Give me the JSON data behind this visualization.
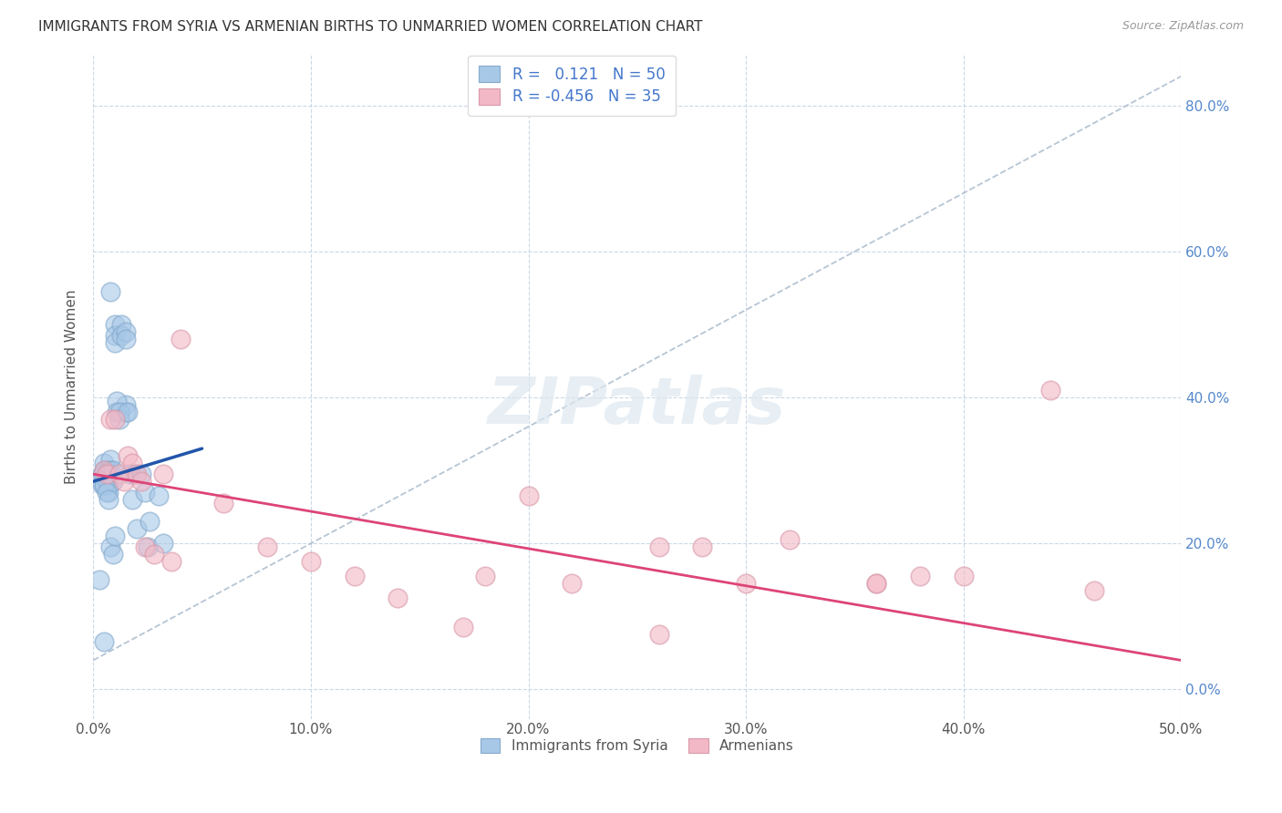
{
  "title": "IMMIGRANTS FROM SYRIA VS ARMENIAN BIRTHS TO UNMARRIED WOMEN CORRELATION CHART",
  "source": "Source: ZipAtlas.com",
  "ylabel": "Births to Unmarried Women",
  "legend_label1": "Immigrants from Syria",
  "legend_label2": "Armenians",
  "r1": 0.121,
  "n1": 50,
  "r2": -0.456,
  "n2": 35,
  "xlim": [
    0.0,
    0.5
  ],
  "ylim": [
    -0.04,
    0.87
  ],
  "xtick_values": [
    0.0,
    0.1,
    0.2,
    0.3,
    0.4,
    0.5
  ],
  "ytick_values": [
    0.0,
    0.2,
    0.4,
    0.6,
    0.8
  ],
  "color_blue_fill": "#a8c8e8",
  "color_blue_edge": "#85aacc",
  "color_pink_fill": "#f2b8c6",
  "color_pink_edge": "#d999aa",
  "color_blue_line": "#2255aa",
  "color_pink_line": "#dd4477",
  "color_diag_line": "#aabbcc",
  "color_right_axis": "#5588cc",
  "color_grid": "#c5d5e5",
  "color_title": "#333333",
  "color_source": "#999999",
  "color_legend_text": "#4477cc",
  "color_bottom_legend": "#555555",
  "color_ylabel": "#555555",
  "background": "#ffffff",
  "blue_dots_x": [
    0.008,
    0.01,
    0.01,
    0.01,
    0.013,
    0.013,
    0.015,
    0.015,
    0.015,
    0.015,
    0.003,
    0.004,
    0.004,
    0.005,
    0.005,
    0.005,
    0.005,
    0.005,
    0.006,
    0.006,
    0.007,
    0.007,
    0.007,
    0.007,
    0.008,
    0.008,
    0.008,
    0.009,
    0.009,
    0.011,
    0.011,
    0.012,
    0.012,
    0.016,
    0.017,
    0.018,
    0.019,
    0.02,
    0.022,
    0.024,
    0.025,
    0.026,
    0.03,
    0.032,
    0.005,
    0.006,
    0.007,
    0.008,
    0.009,
    0.01
  ],
  "blue_dots_y": [
    0.545,
    0.5,
    0.485,
    0.475,
    0.5,
    0.485,
    0.49,
    0.48,
    0.39,
    0.38,
    0.15,
    0.295,
    0.28,
    0.31,
    0.3,
    0.29,
    0.28,
    0.065,
    0.3,
    0.285,
    0.3,
    0.295,
    0.28,
    0.27,
    0.315,
    0.3,
    0.295,
    0.3,
    0.285,
    0.395,
    0.38,
    0.38,
    0.37,
    0.38,
    0.295,
    0.26,
    0.295,
    0.22,
    0.295,
    0.27,
    0.195,
    0.23,
    0.265,
    0.2,
    0.28,
    0.27,
    0.26,
    0.195,
    0.185,
    0.21
  ],
  "pink_dots_x": [
    0.005,
    0.006,
    0.008,
    0.01,
    0.012,
    0.014,
    0.016,
    0.018,
    0.02,
    0.022,
    0.024,
    0.028,
    0.032,
    0.036,
    0.04,
    0.06,
    0.08,
    0.1,
    0.12,
    0.14,
    0.18,
    0.2,
    0.22,
    0.26,
    0.28,
    0.3,
    0.32,
    0.36,
    0.38,
    0.4,
    0.44,
    0.46,
    0.17,
    0.26,
    0.36
  ],
  "pink_dots_y": [
    0.3,
    0.295,
    0.37,
    0.37,
    0.295,
    0.285,
    0.32,
    0.31,
    0.295,
    0.285,
    0.195,
    0.185,
    0.295,
    0.175,
    0.48,
    0.255,
    0.195,
    0.175,
    0.155,
    0.125,
    0.155,
    0.265,
    0.145,
    0.195,
    0.195,
    0.145,
    0.205,
    0.145,
    0.155,
    0.155,
    0.41,
    0.135,
    0.085,
    0.075,
    0.145
  ],
  "blue_line_x": [
    0.0,
    0.05
  ],
  "blue_line_y": [
    0.285,
    0.33
  ],
  "pink_line_x": [
    0.0,
    0.5
  ],
  "pink_line_y": [
    0.295,
    0.04
  ],
  "diag_line_x": [
    0.0,
    0.5
  ],
  "diag_line_y": [
    0.04,
    0.84
  ]
}
